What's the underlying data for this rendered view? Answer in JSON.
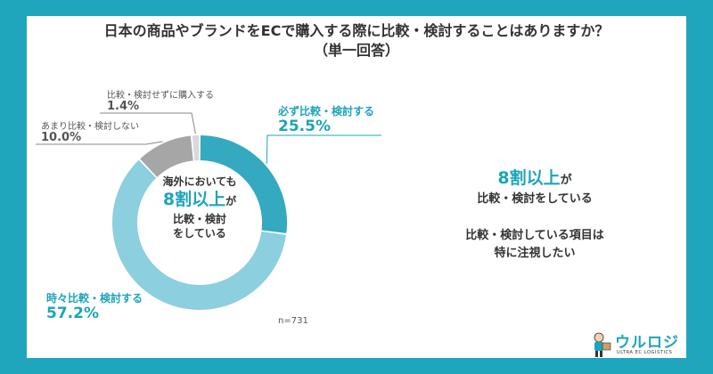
{
  "header": {
    "title": "日本の商品やブランドをECで購入する際に比較・検討することはありますか？",
    "subtitle": "（単一回答）"
  },
  "center_text": {
    "line1": "海外においても",
    "emphasis": "8割以上",
    "line2_suffix": "が",
    "line3": "比較・検討",
    "line4": "をしている"
  },
  "sample_size": "n=731",
  "summary": {
    "emphasis": "8割以上",
    "line1_suffix": "が",
    "line2": "比較・検討をしている",
    "line3": "比較・検討している項目は",
    "line4": "特に注視したい"
  },
  "logo": {
    "brand": "ウルロジ",
    "tagline": "ULTRA EC LOGISTICS"
  },
  "colors": {
    "frame": "#1fa6bc",
    "accent": "#1ea4bb",
    "slice_always": "#34a9c0",
    "slice_sometimes": "#8ccfdf",
    "slice_not_much": "#a6a6a6",
    "slice_never": "#d9d9d9"
  },
  "chart_data": {
    "type": "pie",
    "variant": "donut",
    "title": "日本の商品やブランドをECで購入する際に比較・検討することはありますか？",
    "subtitle": "（単一回答）",
    "slices": [
      {
        "label": "必ず比較・検討する",
        "value": 25.5,
        "display": "25.5%"
      },
      {
        "label": "時々比較・検討する",
        "value": 57.2,
        "display": "57.2%"
      },
      {
        "label": "あまり比較・検討しない",
        "value": 10.0,
        "display": "10.0%"
      },
      {
        "label": "比較・検討せずに購入する",
        "value": 1.4,
        "display": "1.4%"
      }
    ],
    "n": "n=731"
  }
}
